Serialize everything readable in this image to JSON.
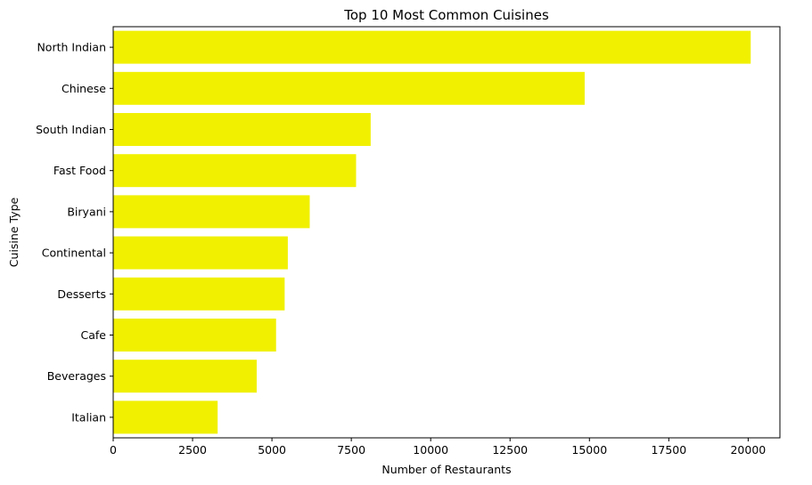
{
  "chart_data": {
    "type": "bar",
    "orientation": "horizontal",
    "title": "Top 10 Most Common Cuisines",
    "xlabel": "Number of Restaurants",
    "ylabel": "Cuisine Type",
    "categories": [
      "North Indian",
      "Chinese",
      "South Indian",
      "Fast Food",
      "Biryani",
      "Continental",
      "Desserts",
      "Cafe",
      "Beverages",
      "Italian"
    ],
    "values": [
      20080,
      14850,
      8110,
      7650,
      6190,
      5500,
      5400,
      5130,
      4520,
      3290
    ],
    "xlim": [
      0,
      21000
    ],
    "xticks": [
      0,
      2500,
      5000,
      7500,
      10000,
      12500,
      15000,
      17500,
      20000
    ],
    "bar_color": "#f0f000",
    "grid": false,
    "legend": false
  }
}
